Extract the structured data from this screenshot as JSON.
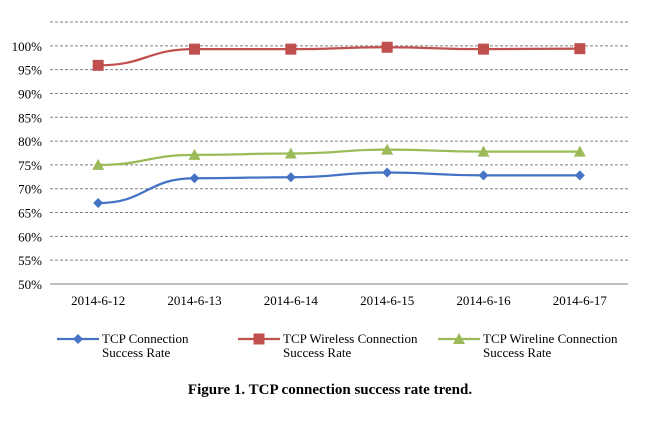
{
  "chart_data": {
    "type": "line",
    "title": "",
    "xlabel": "",
    "ylabel": "",
    "categories": [
      "2014-6-12",
      "2014-6-13",
      "2014-6-14",
      "2014-6-15",
      "2014-6-16",
      "2014-6-17"
    ],
    "y_ticks": [
      "50%",
      "55%",
      "60%",
      "65%",
      "70%",
      "75%",
      "80%",
      "85%",
      "90%",
      "95%",
      "100%"
    ],
    "ylim": [
      50,
      105
    ],
    "grid": "horizontal-dashed",
    "legend": "bottom",
    "series": [
      {
        "name_lines": [
          "TCP Connection",
          "Success Rate"
        ],
        "marker": "diamond",
        "color": "#4472C4",
        "values": [
          67.0,
          72.2,
          72.4,
          73.4,
          72.8,
          72.8
        ]
      },
      {
        "name_lines": [
          "TCP Wireless Connection",
          "Success Rate"
        ],
        "marker": "square",
        "color": "#C0504D",
        "values": [
          95.9,
          99.3,
          99.3,
          99.7,
          99.3,
          99.4
        ]
      },
      {
        "name_lines": [
          "TCP Wireline Connection",
          "Success Rate"
        ],
        "marker": "triangle",
        "color": "#9BBB59",
        "values": [
          75.0,
          77.1,
          77.4,
          78.2,
          77.8,
          77.8
        ]
      }
    ]
  },
  "caption": "Figure 1. TCP connection success rate trend."
}
